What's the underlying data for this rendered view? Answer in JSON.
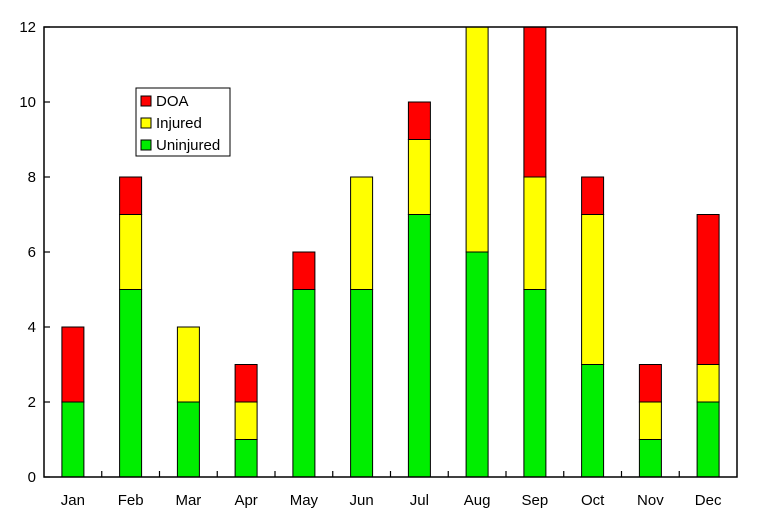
{
  "chart_data": {
    "type": "bar",
    "stacked": true,
    "title": "",
    "xlabel": "",
    "ylabel": "",
    "categories": [
      "Jan",
      "Feb",
      "Mar",
      "Apr",
      "May",
      "Jun",
      "Jul",
      "Aug",
      "Sep",
      "Oct",
      "Nov",
      "Dec"
    ],
    "series": [
      {
        "name": "Uninjured",
        "color": "#00ee00",
        "values": [
          2,
          5,
          2,
          1,
          5,
          5,
          7,
          6,
          5,
          3,
          1,
          2
        ]
      },
      {
        "name": "Injured",
        "color": "#ffff00",
        "values": [
          0,
          2,
          2,
          1,
          0,
          3,
          2,
          6,
          3,
          4,
          1,
          1
        ]
      },
      {
        "name": "DOA",
        "color": "#ff0000",
        "values": [
          2,
          1,
          0,
          1,
          1,
          0,
          1,
          0,
          4,
          1,
          1,
          4
        ]
      }
    ],
    "ylim": [
      0,
      12
    ],
    "yticks": [
      0,
      2,
      4,
      6,
      8,
      10,
      12
    ],
    "grid": false,
    "legend": {
      "placement": "upper-left-inside",
      "order": [
        "DOA",
        "Injured",
        "Uninjured"
      ]
    }
  }
}
